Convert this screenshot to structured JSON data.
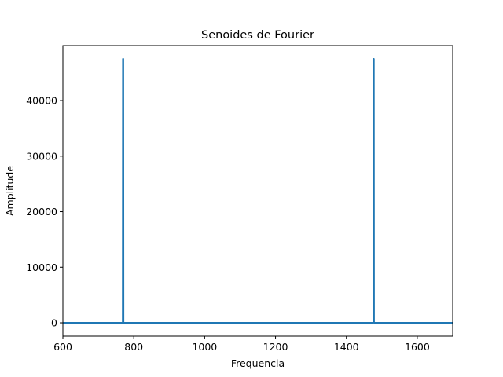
{
  "chart_data": {
    "type": "line",
    "title": "Senoides de Fourier",
    "xlabel": "Frequencia",
    "ylabel": "Amplitude",
    "xlim": [
      600,
      1700
    ],
    "ylim": [
      -2400,
      49900
    ],
    "xticks": [
      600,
      800,
      1000,
      1200,
      1400,
      1600
    ],
    "yticks": [
      0,
      10000,
      20000,
      30000,
      40000
    ],
    "xtick_labels": [
      "600",
      "800",
      "1000",
      "1200",
      "1400",
      "1600"
    ],
    "ytick_labels": [
      "0",
      "10000",
      "20000",
      "30000",
      "40000"
    ],
    "grid": false,
    "legend": "none",
    "series": [
      {
        "color": "#1f77b4",
        "x": [
          600,
          769,
          769.5,
          770,
          770.5,
          771,
          1476,
          1476.5,
          1477,
          1477.5,
          1478,
          1700
        ],
        "y": [
          0,
          0,
          47500,
          47500,
          47500,
          0,
          0,
          47500,
          47500,
          47500,
          0,
          0
        ]
      }
    ]
  }
}
